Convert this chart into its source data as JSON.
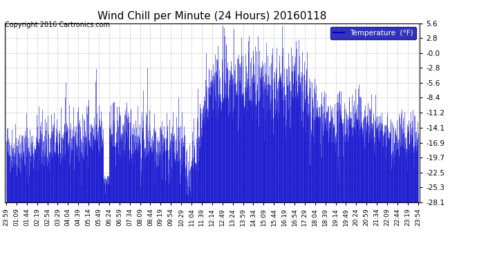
{
  "title": "Wind Chill per Minute (24 Hours) 20160118",
  "copyright": "Copyright 2016 Cartronics.com",
  "legend_label": "Temperature  (°F)",
  "line_color": "#0000CC",
  "background_color": "#ffffff",
  "plot_bg_color": "#ffffff",
  "grid_color": "#aaaaaa",
  "ylim": [
    -28.1,
    5.6
  ],
  "yticks": [
    5.6,
    2.8,
    0.0,
    -2.8,
    -5.6,
    -8.4,
    -11.2,
    -14.1,
    -16.9,
    -19.7,
    -22.5,
    -25.3,
    -28.1
  ],
  "ytick_labels": [
    "5.6",
    "2.8",
    "-0.0",
    "-2.8",
    "-5.6",
    "-8.4",
    "-11.2",
    "-14.1",
    "-16.9",
    "-19.7",
    "-22.5",
    "-25.3",
    "-28.1"
  ],
  "xtick_labels": [
    "23:59",
    "01:09",
    "01:44",
    "02:19",
    "02:54",
    "03:29",
    "04:04",
    "04:39",
    "05:14",
    "05:49",
    "06:24",
    "06:59",
    "07:34",
    "08:09",
    "08:44",
    "09:19",
    "09:54",
    "10:29",
    "11:04",
    "11:39",
    "12:14",
    "12:49",
    "13:24",
    "13:59",
    "14:34",
    "15:09",
    "15:44",
    "16:19",
    "16:54",
    "17:29",
    "18:04",
    "18:39",
    "19:14",
    "19:49",
    "20:24",
    "20:59",
    "21:34",
    "22:09",
    "22:44",
    "23:19",
    "23:54"
  ],
  "num_points": 1440
}
